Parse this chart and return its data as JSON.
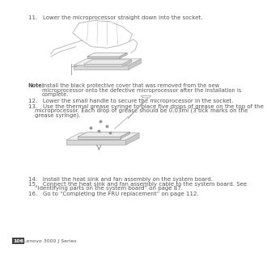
{
  "page_bg": "#ffffff",
  "text_color": "#555555",
  "line_color": "#bbbbbb",
  "step11": "11.   Lower the microprocessor straight down into the socket.",
  "note_label": "Note:",
  "note_line1": "Install the black protective cover that was removed from the new",
  "note_line2": "microprocessor onto the defective microprocessor after the installation is",
  "note_line3": "complete.",
  "step12": "12.   Lower the small handle to secure the microprocessor in the socket.",
  "step13a": "13.   Use the thermal grease syringe to place five drops of grease on the top of the",
  "step13b": "microprocessor. Each drop of grease should be 0.03ml (3 tick marks on the",
  "step13c": "grease syringe).",
  "step14": "14.   Install the heat sink and fan assembly on the system board.",
  "step15a": "15.   Connect the heat sink and fan assembly cable to the system board. See",
  "step15b": "“Identifying parts on the system board” on page 87.",
  "step16": "16.   Go to “Completing the FRU replacement” on page 112.",
  "footer_num": "106",
  "footer_txt": "Lenovo 3000 J Series",
  "fs_body": 5.0,
  "fs_note": 4.8,
  "fs_footer": 4.5
}
